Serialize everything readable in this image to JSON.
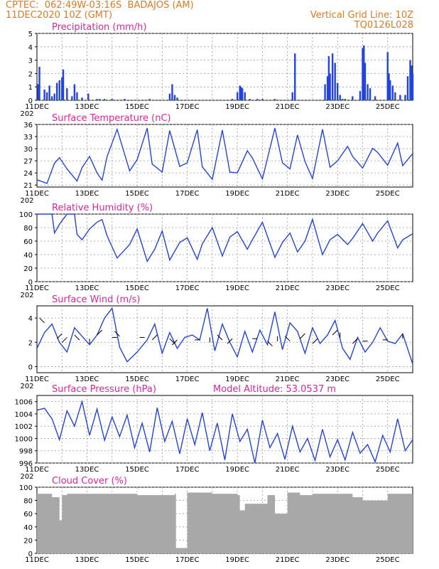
{
  "header": {
    "line1": "CPTEC:  062:49W-03:16S  BADAJOS (AM)",
    "line2": "11DEC2020 10Z (GMT)",
    "right1": "Vertical Grid Line: 10Z",
    "right2": "TQ0126L028",
    "cut_year": "202",
    "header_color": "#e07a1e",
    "title_color": "#e0239a",
    "line_color": "#2244dd",
    "cloud_color": "#a8a8a8"
  },
  "chart_data": [
    {
      "type": "bar",
      "title": "Precipitation (mm/h)",
      "x_ticks": [
        "11DEC",
        "13DEC",
        "15DEC",
        "17DEC",
        "19DEC",
        "21DEC",
        "23DEC",
        "25DEC"
      ],
      "ylim": [
        0,
        5
      ],
      "y_ticks": [
        "0",
        "1",
        "2",
        "3",
        "4",
        "5"
      ],
      "x": [
        0.05,
        0.1,
        0.3,
        0.4,
        0.5,
        0.6,
        0.7,
        0.8,
        0.9,
        1.0,
        1.05,
        1.2,
        1.4,
        1.5,
        1.6,
        1.8,
        2.05,
        2.4,
        2.5,
        2.7,
        3.0,
        3.5,
        4.5,
        5.3,
        5.4,
        5.5,
        5.6,
        7.8,
        8.0,
        8.1,
        8.15,
        8.2,
        8.3,
        8.5,
        8.8,
        9.0,
        9.5,
        10.2,
        10.3,
        11.5,
        11.6,
        11.65,
        11.7,
        11.8,
        11.9,
        12.0,
        12.1,
        12.2,
        12.3,
        12.6,
        12.9,
        13.0,
        13.05,
        13.1,
        13.2,
        13.3,
        13.5,
        14.0,
        14.05,
        14.1,
        14.2,
        14.3,
        14.5,
        14.7,
        14.8,
        14.9,
        14.95,
        15.0
      ],
      "values": [
        1.2,
        2.5,
        0.8,
        0.6,
        1.1,
        0.3,
        0.5,
        1.3,
        1.5,
        1.7,
        2.3,
        0.9,
        0.3,
        1.2,
        0.6,
        0.2,
        0.5,
        0.1,
        0.1,
        0.1,
        0.1,
        0.1,
        0.1,
        0.5,
        1.2,
        0.4,
        0.2,
        0.1,
        0.6,
        1.1,
        1.0,
        0.9,
        0.6,
        0.1,
        0.1,
        0.1,
        0.1,
        0.6,
        3.5,
        1.2,
        1.8,
        3.3,
        2.0,
        3.5,
        2.8,
        1.3,
        0.4,
        0.1,
        0.1,
        0.3,
        0.7,
        3.9,
        4.1,
        2.8,
        1.2,
        0.9,
        0.3,
        3.6,
        2.0,
        1.5,
        1.1,
        0.6,
        0.4,
        0.4,
        1.8,
        3.0,
        2.6,
        2.0
      ]
    },
    {
      "type": "line",
      "title": "Surface Temperature (nC)",
      "x_ticks": [
        "11DEC",
        "13DEC",
        "15DEC",
        "17DEC",
        "19DEC",
        "21DEC",
        "23DEC",
        "25DEC"
      ],
      "ylim": [
        20.5,
        36
      ],
      "y_ticks": [
        "21",
        "24",
        "27",
        "30",
        "33",
        "36"
      ],
      "x": [
        0,
        0.4,
        0.7,
        0.9,
        1.2,
        1.6,
        1.8,
        2.1,
        2.4,
        2.6,
        2.8,
        3.2,
        3.7,
        4.0,
        4.4,
        4.6,
        5.0,
        5.3,
        5.7,
        6.0,
        6.4,
        6.6,
        7.0,
        7.4,
        7.7,
        8.0,
        8.4,
        8.6,
        9.0,
        9.5,
        9.8,
        10.1,
        10.4,
        10.7,
        11.0,
        11.4,
        11.7,
        12.0,
        12.4,
        12.6,
        13.0,
        13.4,
        13.6,
        14.0,
        14.4,
        14.6,
        15.0
      ],
      "values": [
        22.3,
        21.4,
        26.4,
        27.8,
        25.0,
        22.0,
        25.3,
        28.1,
        24.0,
        22.2,
        28.0,
        34.8,
        24.5,
        27.3,
        35.1,
        26.2,
        24.2,
        34.5,
        25.6,
        26.5,
        34.7,
        25.5,
        22.4,
        34.6,
        24.2,
        24.0,
        29.5,
        27.7,
        22.5,
        35.1,
        26.5,
        25.0,
        33.4,
        26.8,
        22.6,
        34.8,
        25.4,
        27.0,
        30.6,
        28.1,
        25.2,
        30.1,
        29.1,
        25.9,
        31.4,
        25.8,
        28.8
      ]
    },
    {
      "type": "line",
      "title": "Relative Humidity (%)",
      "x_ticks": [
        "11DEC",
        "13DEC",
        "15DEC",
        "17DEC",
        "19DEC",
        "21DEC",
        "23DEC",
        "25DEC"
      ],
      "ylim": [
        0,
        100
      ],
      "y_ticks": [
        "0",
        "20",
        "40",
        "60",
        "80",
        "100"
      ],
      "x": [
        0,
        0.4,
        0.6,
        0.7,
        0.9,
        1.2,
        1.5,
        1.6,
        1.8,
        2.1,
        2.4,
        2.6,
        2.8,
        3.2,
        3.7,
        4.0,
        4.4,
        4.7,
        5.0,
        5.3,
        5.7,
        6.0,
        6.4,
        6.6,
        7.0,
        7.4,
        7.7,
        8.0,
        8.4,
        8.6,
        9.0,
        9.5,
        9.8,
        10.1,
        10.4,
        10.7,
        11.0,
        11.4,
        11.7,
        12.0,
        12.4,
        12.6,
        13.0,
        13.4,
        13.6,
        14.0,
        14.4,
        14.6,
        15.0
      ],
      "values": [
        100,
        100,
        100,
        72,
        85,
        100,
        100,
        70,
        62,
        78,
        88,
        92,
        68,
        35,
        55,
        78,
        30,
        48,
        75,
        32,
        58,
        65,
        33,
        56,
        80,
        38,
        66,
        74,
        48,
        62,
        88,
        36,
        58,
        72,
        44,
        60,
        92,
        40,
        62,
        70,
        55,
        64,
        86,
        60,
        72,
        90,
        50,
        62,
        71
      ]
    },
    {
      "type": "line",
      "title": "Surface Wind (m/s)",
      "x_ticks": [
        "11DEC",
        "13DEC",
        "15DEC",
        "17DEC",
        "19DEC",
        "21DEC",
        "23DEC",
        "25DEC"
      ],
      "ylim": [
        -0.5,
        5
      ],
      "y_ticks": [
        "0",
        "2",
        "4"
      ],
      "x": [
        0,
        0.3,
        0.6,
        0.9,
        1.2,
        1.5,
        1.8,
        2.1,
        2.4,
        2.7,
        3.0,
        3.3,
        3.6,
        4.0,
        4.4,
        4.7,
        5.0,
        5.3,
        5.6,
        5.9,
        6.2,
        6.5,
        6.8,
        7.1,
        7.4,
        7.7,
        8.0,
        8.3,
        8.6,
        8.9,
        9.2,
        9.5,
        9.8,
        10.1,
        10.4,
        10.7,
        11.0,
        11.3,
        11.6,
        11.9,
        12.2,
        12.5,
        12.8,
        13.1,
        13.4,
        13.7,
        14.0,
        14.3,
        14.6,
        15.0
      ],
      "values": [
        1.5,
        2.8,
        3.5,
        2.0,
        1.2,
        3.2,
        2.5,
        1.8,
        2.6,
        4.0,
        4.8,
        1.6,
        0.4,
        1.2,
        2.2,
        3.5,
        1.1,
        2.8,
        1.5,
        2.4,
        2.6,
        2.2,
        4.8,
        1.3,
        3.5,
        2.0,
        0.8,
        2.9,
        1.2,
        3.0,
        1.8,
        4.5,
        1.4,
        3.6,
        2.9,
        1.1,
        3.2,
        1.9,
        2.6,
        3.8,
        1.5,
        0.6,
        2.4,
        1.2,
        2.0,
        3.2,
        2.1,
        1.9,
        2.7,
        0.2
      ]
    },
    {
      "type": "line",
      "title": "Surface Pressure (hPa)",
      "annotation": "Model Altitude: 53.0537  m",
      "x_ticks": [
        "11DEC",
        "13DEC",
        "15DEC",
        "17DEC",
        "19DEC",
        "21DEC",
        "23DEC",
        "25DEC"
      ],
      "ylim": [
        996,
        1007
      ],
      "y_ticks": [
        "996",
        "998",
        "1000",
        "1002",
        "1004",
        "1006"
      ],
      "x": [
        0,
        0.3,
        0.6,
        0.9,
        1.2,
        1.5,
        1.8,
        2.1,
        2.4,
        2.7,
        3.0,
        3.3,
        3.6,
        3.9,
        4.2,
        4.5,
        4.8,
        5.1,
        5.4,
        5.7,
        6.0,
        6.3,
        6.6,
        6.9,
        7.2,
        7.5,
        7.8,
        8.1,
        8.4,
        8.7,
        9.0,
        9.3,
        9.6,
        9.9,
        10.2,
        10.5,
        10.8,
        11.1,
        11.4,
        11.7,
        12.0,
        12.3,
        12.6,
        12.9,
        13.2,
        13.5,
        13.8,
        14.1,
        14.4,
        14.7,
        15.0
      ],
      "values": [
        1004.6,
        1004.9,
        1003.2,
        999.8,
        1004.5,
        1002.0,
        1006.0,
        1000.5,
        1004.8,
        999.7,
        1003.5,
        1000.3,
        1003.8,
        998.5,
        1002.5,
        997.8,
        1005.0,
        999.5,
        1002.8,
        997.5,
        1003.2,
        999.0,
        1004.2,
        998.0,
        1002.5,
        996.5,
        1004.0,
        999.5,
        1001.5,
        996.0,
        1003.0,
        998.5,
        1000.8,
        996.6,
        1002.0,
        997.8,
        1000.0,
        996.4,
        1001.5,
        997.0,
        999.8,
        996.5,
        1001.0,
        997.6,
        999.0,
        996.2,
        1000.5,
        997.8,
        1003.2,
        998.0,
        999.8
      ]
    },
    {
      "type": "bar",
      "title": "Cloud Cover (%)",
      "x_ticks": [
        "11DEC",
        "13DEC",
        "15DEC",
        "17DEC",
        "19DEC",
        "21DEC",
        "23DEC",
        "25DEC"
      ],
      "ylim": [
        0,
        100
      ],
      "y_ticks": [
        "0",
        "20",
        "40",
        "60",
        "80",
        "100"
      ],
      "x": [
        0,
        0.6,
        0.9,
        1.0,
        1.2,
        3.0,
        4.0,
        5.5,
        5.55,
        6.0,
        7.0,
        8.0,
        8.1,
        8.3,
        9.2,
        9.5,
        10.0,
        10.5,
        11.0,
        12.0,
        12.6,
        13.0,
        14.0,
        15.0
      ],
      "values": [
        90,
        85,
        50,
        88,
        90,
        90,
        88,
        90,
        8,
        92,
        90,
        88,
        65,
        75,
        88,
        60,
        92,
        88,
        90,
        90,
        85,
        80,
        90,
        88
      ]
    }
  ]
}
